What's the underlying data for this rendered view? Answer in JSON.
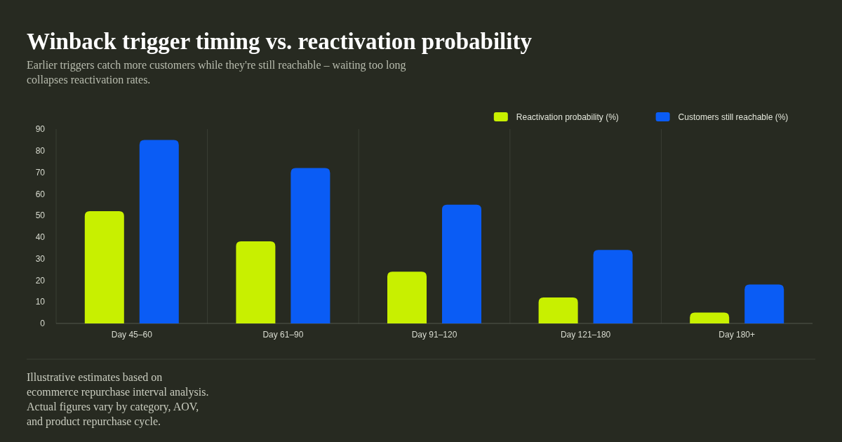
{
  "chart_data": {
    "type": "bar",
    "title": "Winback trigger timing vs. reactivation probability",
    "subtitle": "Earlier triggers catch more customers while they're still reachable – waiting too long collapses reactivation rates.",
    "categories": [
      "Day 45–60",
      "Day 61–90",
      "Day 91–120",
      "Day 121–180",
      "Day 180+"
    ],
    "series": [
      {
        "name": "Reactivation probability (%)",
        "color": "#c8f000",
        "values": [
          52,
          38,
          24,
          12,
          5
        ]
      },
      {
        "name": "Customers still reachable (%)",
        "color": "#0a5cf5",
        "values": [
          85,
          72,
          55,
          34,
          18
        ]
      }
    ],
    "ylim": [
      0,
      90
    ],
    "yticks": [
      0,
      10,
      20,
      30,
      40,
      50,
      60,
      70,
      80,
      90
    ],
    "grid": "x",
    "legend": "top right",
    "annotations": [
      "Illustrative estimates based on ecommerce repurchase interval analysis. Actual figures vary by category, AOV, and product repurchase cycle."
    ]
  }
}
